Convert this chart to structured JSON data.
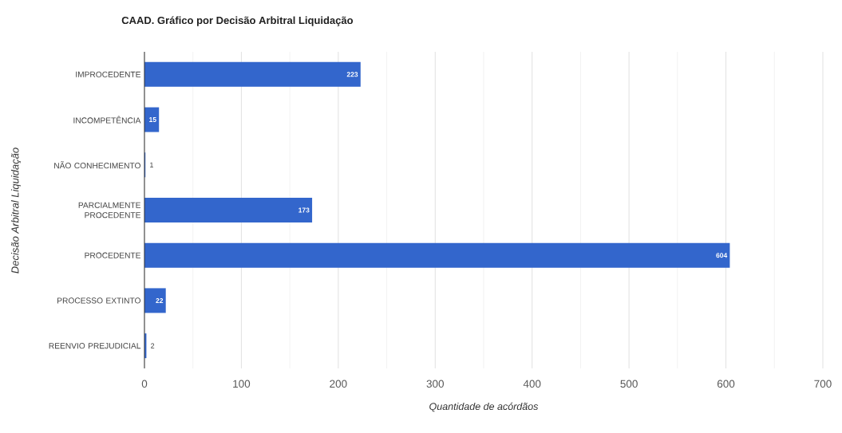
{
  "chart_data": {
    "type": "bar",
    "orientation": "horizontal",
    "title": "CAAD. Gráfico por Decisão Arbitral Liquidação",
    "xlabel": "Quantidade de acórdãos",
    "ylabel": "Decisão Arbitral Liquidação",
    "categories": [
      "IMPROCEDENTE",
      "INCOMPETÊNCIA",
      "NÃO CONHECIMENTO",
      "PARCIALMENTE PROCEDENTE",
      "PROCEDENTE",
      "PROCESSO EXTINTO",
      "REENVIO PREJUDICIAL"
    ],
    "values": [
      223,
      15,
      1,
      173,
      604,
      22,
      2
    ],
    "color": "#3366cc",
    "xlim": [
      0,
      700
    ],
    "xticks": [
      0,
      {
        "value": 50,
        "label": null
      },
      100,
      {
        "value": 150,
        "label": null
      },
      200,
      {
        "value": 250,
        "label": null
      },
      300,
      {
        "value": 350,
        "label": null
      },
      400,
      {
        "value": 450,
        "label": null
      },
      500,
      {
        "value": 550,
        "label": null
      },
      600,
      {
        "value": 650,
        "label": null
      },
      700
    ],
    "grid": "x",
    "data_labels": true
  }
}
